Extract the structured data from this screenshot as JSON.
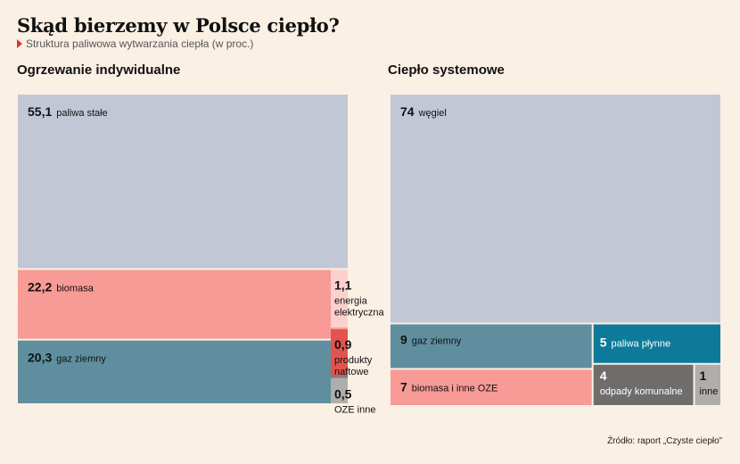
{
  "title": "Skąd bierzemy w Polsce ciepło?",
  "subtitle": "Struktura paliwowa wytwarzania ciepła (w proc.)",
  "source": "Źródło: raport „Czyste ciepło”",
  "chart_data": [
    {
      "type": "treemap",
      "title": "Ogrzewanie indywidualne",
      "items": [
        {
          "value": 55.1,
          "value_label": "55,1",
          "label": "paliwa stałe",
          "color": "#c2c7d6"
        },
        {
          "value": 22.2,
          "value_label": "22,2",
          "label": "biomasa",
          "color": "#f89a96"
        },
        {
          "value": 20.3,
          "value_label": "20,3",
          "label": "gaz ziemny",
          "color": "#5f8f9e"
        },
        {
          "value": 1.1,
          "value_label": "1,1",
          "label": "energia elektryczna",
          "color": "#fbd0cd"
        },
        {
          "value": 0.9,
          "value_label": "0,9",
          "label": "produkty naftowe",
          "color": "#e4534e"
        },
        {
          "value": 0.5,
          "value_label": "0,5",
          "label": "OZE inne",
          "color": "#b0aeab"
        }
      ]
    },
    {
      "type": "treemap",
      "title": "Ciepło systemowe",
      "items": [
        {
          "value": 74,
          "value_label": "74",
          "label": "węgiel",
          "color": "#c2c7d6"
        },
        {
          "value": 9,
          "value_label": "9",
          "label": "gaz ziemny",
          "color": "#5f8f9e"
        },
        {
          "value": 7,
          "value_label": "7",
          "label": "biomasa i inne OZE",
          "color": "#f89a96"
        },
        {
          "value": 5,
          "value_label": "5",
          "label": "paliwa płynne",
          "color": "#0e7a9a"
        },
        {
          "value": 4,
          "value_label": "4",
          "label": "odpady komunalne",
          "color": "#6f6d6c"
        },
        {
          "value": 1,
          "value_label": "1",
          "label": "inne",
          "color": "#b0aeab"
        }
      ]
    }
  ]
}
